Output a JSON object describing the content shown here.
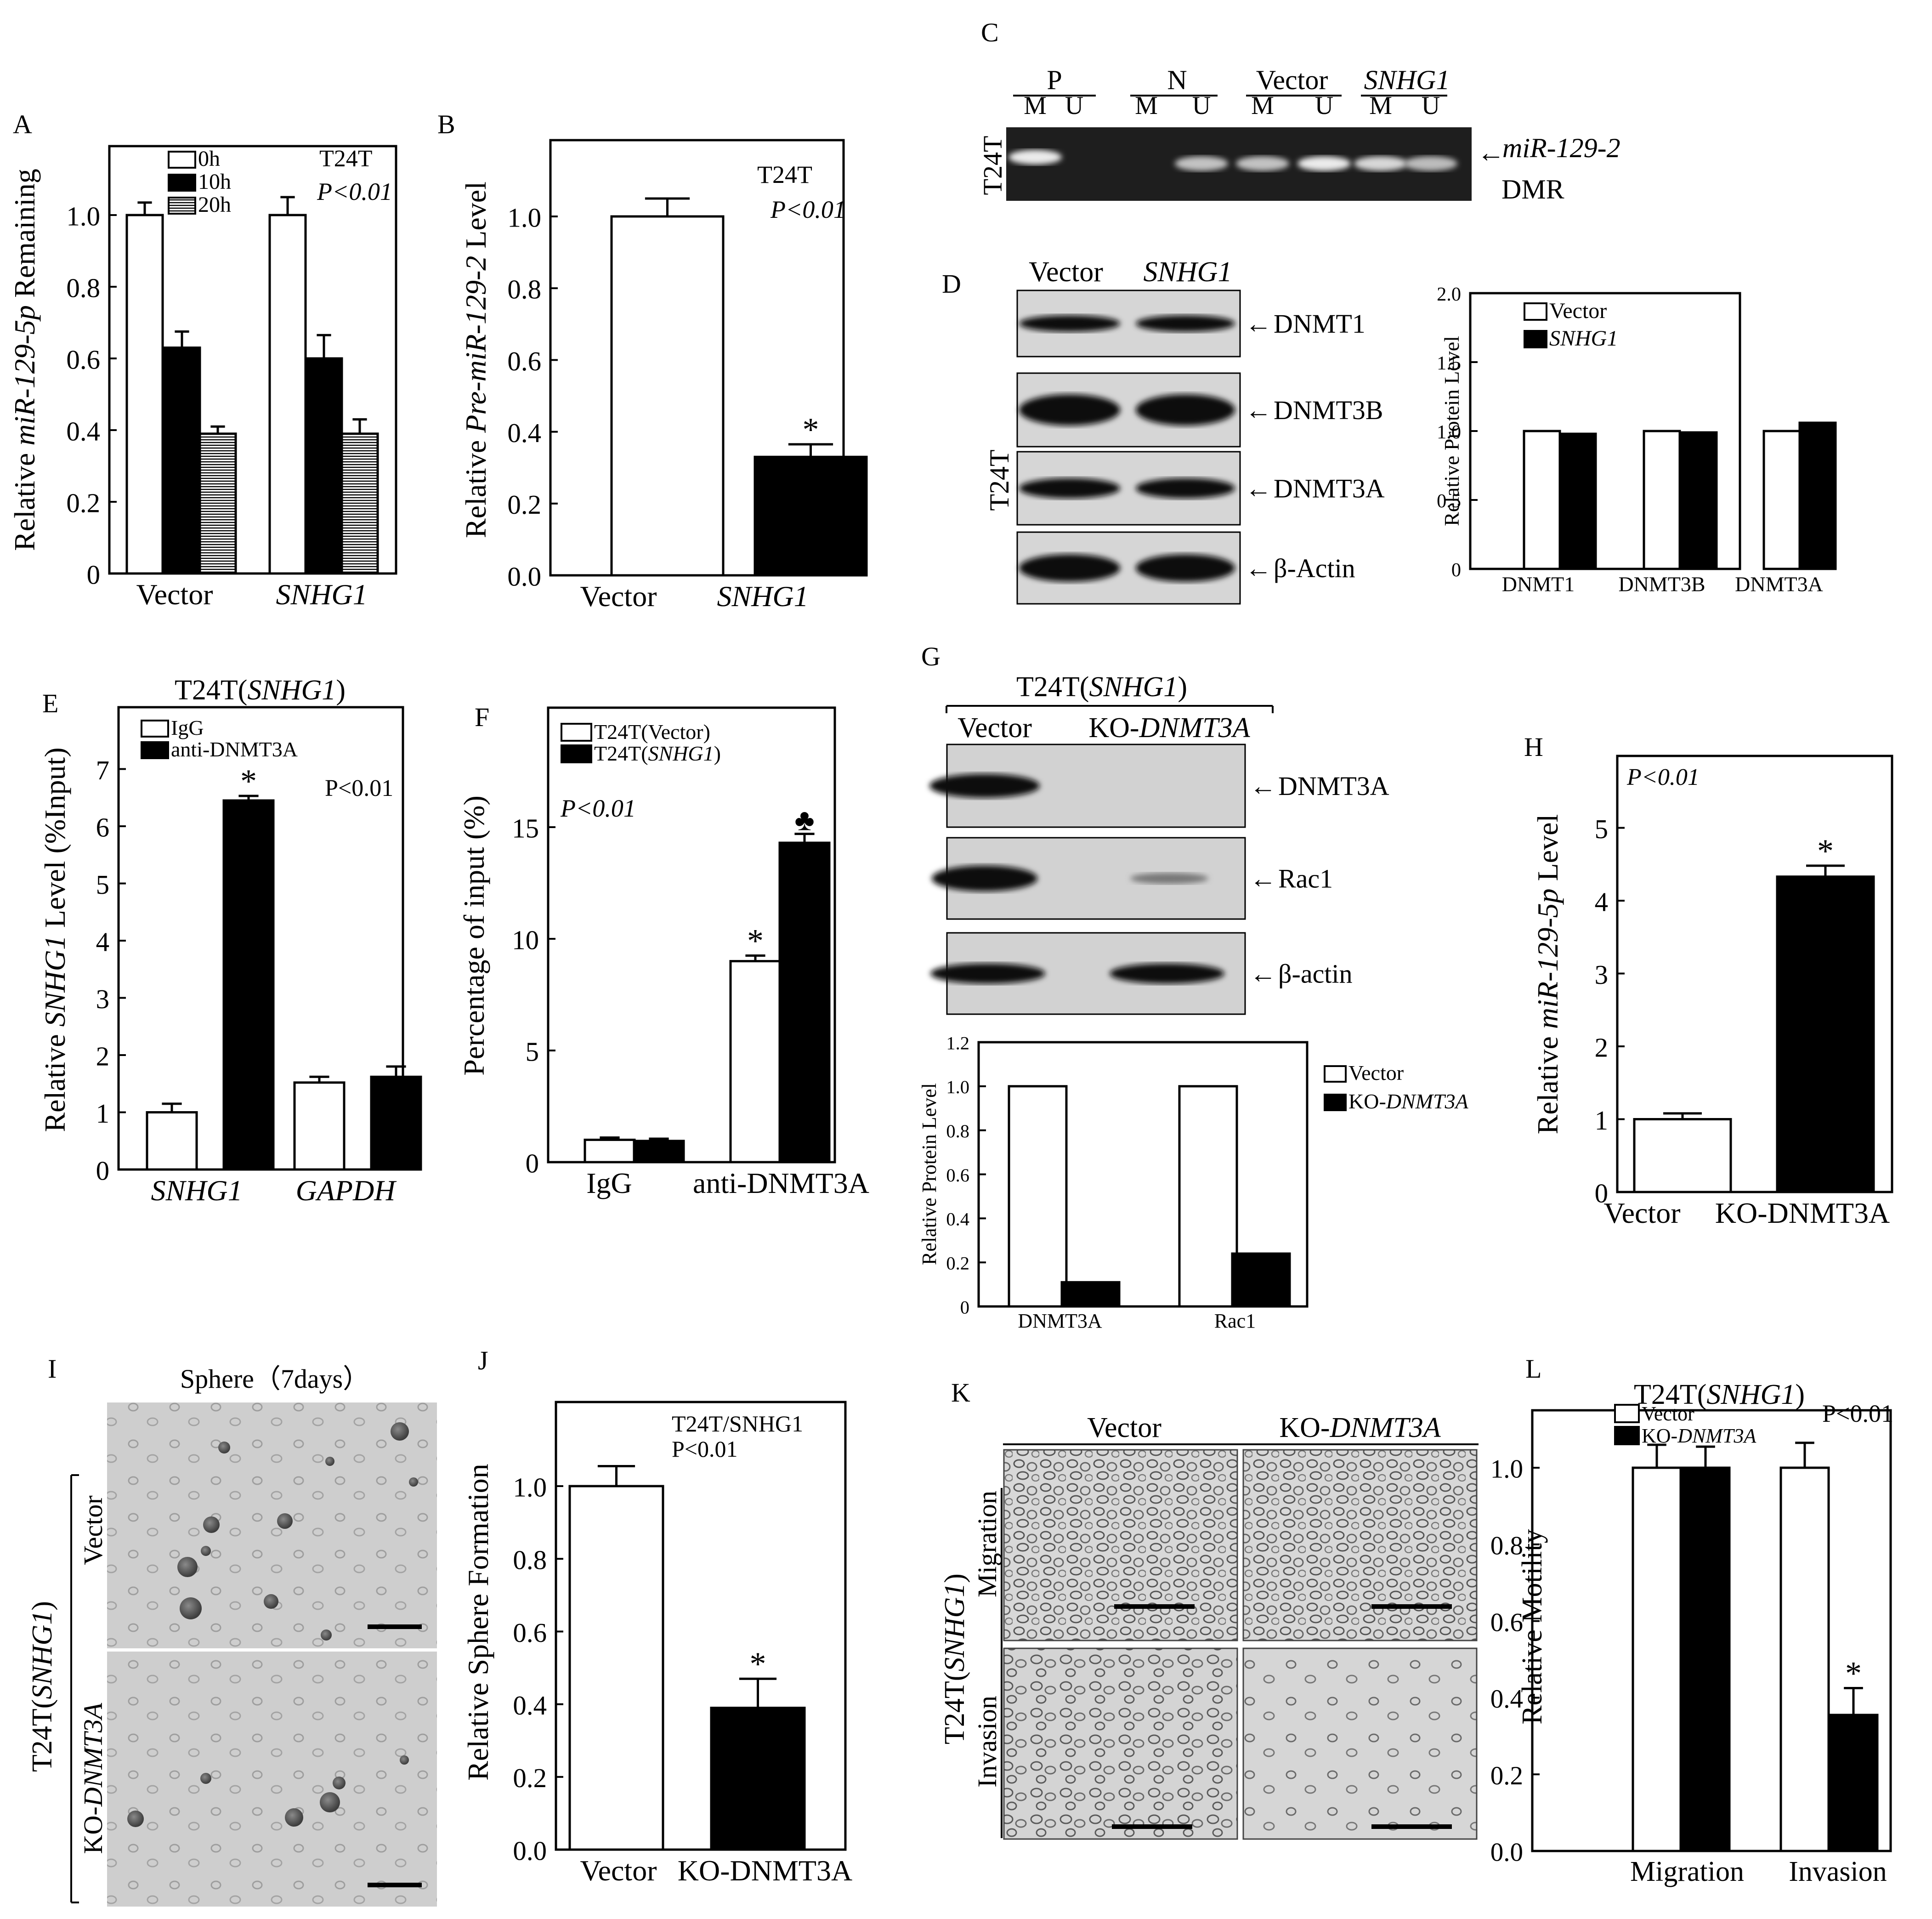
{
  "chart_data": [
    {
      "panel": "A",
      "type": "bar",
      "categories": [
        "Vector",
        "SNHG1"
      ],
      "italic_categories": [
        false,
        true
      ],
      "series": [
        {
          "name": "0h",
          "values": [
            1.0,
            1.0
          ],
          "errors": [
            0.035,
            0.05
          ],
          "fill": "white"
        },
        {
          "name": "10h",
          "values": [
            0.63,
            0.6
          ],
          "errors": [
            0.045,
            0.065
          ],
          "fill": "black"
        },
        {
          "name": "20h",
          "values": [
            0.39,
            0.39
          ],
          "errors": [
            0.02,
            0.04
          ],
          "fill": "hatch"
        }
      ],
      "ylim": [
        0,
        1.2
      ],
      "yticks": [
        "0",
        "0.2",
        "0.4",
        "0.6",
        "0.8",
        "1.0"
      ],
      "ylabel_parts": [
        {
          "t": "Relative ",
          "i": false
        },
        {
          "t": "miR-129-5p",
          "i": true
        },
        {
          "t": " Remaining",
          "i": false
        }
      ],
      "annotations": [
        {
          "text": "T24T",
          "italic": false
        },
        {
          "text": "P<0.01",
          "italic": true
        }
      ]
    },
    {
      "panel": "B",
      "type": "bar",
      "categories": [
        "Vector",
        "SNHG1"
      ],
      "italic_categories": [
        false,
        true
      ],
      "series": [
        {
          "name": "",
          "values": [
            1.0,
            0.33
          ],
          "errors": [
            0.05,
            0.035
          ],
          "fills": [
            "white",
            "black"
          ],
          "stars": [
            "",
            "*"
          ]
        }
      ],
      "ylim": [
        0,
        1.2
      ],
      "yticks": [
        "0.0",
        "0.2",
        "0.4",
        "0.6",
        "0.8",
        "1.0"
      ],
      "ylabel_parts": [
        {
          "t": "Relative ",
          "i": false
        },
        {
          "t": "Pre-miR-129-2",
          "i": true
        },
        {
          "t": " Level",
          "i": false
        }
      ],
      "annotations": [
        {
          "text": "T24T",
          "italic": false
        },
        {
          "text": "P<0.01",
          "italic": true
        }
      ]
    },
    {
      "panel": "D",
      "type": "bar",
      "categories": [
        "DNMT1",
        "DNMT3B",
        "DNMT3A"
      ],
      "series": [
        {
          "name": "Vector",
          "values": [
            1.0,
            1.0,
            1.0
          ],
          "fill": "white"
        },
        {
          "name": "SNHG1",
          "values": [
            0.98,
            0.99,
            1.06
          ],
          "fill": "black",
          "italic": true
        }
      ],
      "ylim": [
        0,
        2.0
      ],
      "yticks": [
        "0",
        "0.5",
        "1.0",
        "1.5",
        "2.0"
      ],
      "ylabel": "Relative Protein Level"
    },
    {
      "panel": "E",
      "type": "bar",
      "title_parts": [
        {
          "t": "T24T(",
          "i": false
        },
        {
          "t": "SNHG1",
          "i": true
        },
        {
          "t": ")",
          "i": false
        }
      ],
      "categories": [
        "SNHG1",
        "GAPDH"
      ],
      "italic_categories": [
        true,
        true
      ],
      "series": [
        {
          "name": "IgG",
          "values": [
            1.0,
            1.52
          ],
          "errors": [
            0.15,
            0.1
          ],
          "fill": "white"
        },
        {
          "name": "anti-DNMT3A",
          "values": [
            6.45,
            1.62
          ],
          "errors": [
            0.08,
            0.18
          ],
          "fill": "black",
          "stars": [
            "*",
            ""
          ]
        }
      ],
      "ylim": [
        0,
        7.4
      ],
      "yticks": [
        "0",
        "1",
        "2",
        "3",
        "4",
        "5",
        "6",
        "7"
      ],
      "ylabel_parts": [
        {
          "t": "Relative  ",
          "i": false
        },
        {
          "t": "SNHG1",
          "i": true
        },
        {
          "t": " Level (%Input)",
          "i": false
        }
      ],
      "annotations": [
        {
          "text": "P<0.01",
          "italic": false
        }
      ]
    },
    {
      "panel": "F",
      "type": "bar",
      "categories": [
        "IgG",
        "anti-DNMT3A"
      ],
      "series": [
        {
          "name": "T24T(Vector)",
          "values": [
            1.0,
            9.0
          ],
          "errors": [
            0.1,
            0.25
          ],
          "fill": "white",
          "stars": [
            "",
            "*"
          ]
        },
        {
          "name": "T24T(SNHG1)",
          "values": [
            0.95,
            14.3
          ],
          "errors": [
            0.1,
            0.4
          ],
          "fill": "black",
          "stars": [
            "",
            "♣"
          ]
        }
      ],
      "ylim": [
        0,
        18.5
      ],
      "yticks": [
        "0",
        "5",
        "10",
        "15"
      ],
      "ylabel": "Percentage of input (%)",
      "annotations": [
        {
          "text": "P<0.01",
          "italic": true
        }
      ]
    },
    {
      "panel": "G",
      "type": "bar",
      "categories": [
        "DNMT3A",
        "Rac1"
      ],
      "series": [
        {
          "name": "Vector",
          "values": [
            1.0,
            1.0
          ],
          "fill": "white"
        },
        {
          "name": "KO-DNMT3A",
          "values": [
            0.11,
            0.24
          ],
          "fill": "black"
        }
      ],
      "ylim": [
        0,
        1.2
      ],
      "yticks": [
        "0",
        "0.2",
        "0.4",
        "0.6",
        "0.8",
        "1.0",
        "1.2"
      ],
      "ylabel": "Relative Protein Level"
    },
    {
      "panel": "H",
      "type": "bar",
      "categories": [
        "Vector",
        "KO-DNMT3A"
      ],
      "series": [
        {
          "name": "",
          "values": [
            1.0,
            4.33
          ],
          "errors": [
            0.08,
            0.15
          ],
          "fills": [
            "white",
            "black"
          ],
          "stars": [
            "",
            "*"
          ]
        }
      ],
      "ylim": [
        0,
        5.55
      ],
      "yticks": [
        "0",
        "1",
        "2",
        "3",
        "4",
        "5"
      ],
      "ylabel_parts": [
        {
          "t": "Relative ",
          "i": false
        },
        {
          "t": "miR-129-5p",
          "i": true
        },
        {
          "t": " Level",
          "i": false
        }
      ],
      "annotations": [
        {
          "text": "P<0.01",
          "italic": true
        }
      ]
    },
    {
      "panel": "J",
      "type": "bar",
      "categories": [
        "Vector",
        "KO-DNMT3A"
      ],
      "series": [
        {
          "name": "",
          "values": [
            1.0,
            0.39
          ],
          "errors": [
            0.055,
            0.08
          ],
          "fills": [
            "white",
            "black"
          ],
          "stars": [
            "",
            "*"
          ]
        }
      ],
      "ylim": [
        0,
        1.2
      ],
      "yticks": [
        "0.0",
        "0.2",
        "0.4",
        "0.6",
        "0.8",
        "1.0"
      ],
      "ylabel": "Relative Sphere Formation",
      "annotations": [
        {
          "text": "T24T/SNHG1",
          "italic": false
        },
        {
          "text": "P<0.01",
          "italic": false
        }
      ]
    },
    {
      "panel": "L",
      "type": "bar",
      "title_parts": [
        {
          "t": "T24T(",
          "i": false
        },
        {
          "t": "SNHG1",
          "i": true
        },
        {
          "t": ")",
          "i": false
        }
      ],
      "categories": [
        "Migration",
        "Invasion"
      ],
      "series": [
        {
          "name": "Vector",
          "values": [
            1.0,
            1.0
          ],
          "errors": [
            0.06,
            0.065
          ],
          "fill": "white"
        },
        {
          "name": "KO-DNMT3A",
          "values": [
            1.0,
            0.355
          ],
          "errors": [
            0.055,
            0.07
          ],
          "fill": "black",
          "stars": [
            "",
            "*"
          ]
        }
      ],
      "ylim": [
        0,
        1.15
      ],
      "yticks": [
        "0.0",
        "0.2",
        "0.4",
        "0.6",
        "0.8",
        "1.0"
      ],
      "ylabel": "Relative Motility",
      "annotations": [
        {
          "text": "P<0.01",
          "italic": false
        }
      ]
    }
  ],
  "panel_labels": [
    "A",
    "B",
    "C",
    "D",
    "E",
    "F",
    "G",
    "H",
    "I",
    "J",
    "K",
    "L"
  ],
  "gel_c": {
    "groups": [
      "P",
      "N",
      "Vector",
      "SNHG1"
    ],
    "lane_labels": [
      "M",
      "U",
      "M",
      "U",
      "M",
      "U",
      "M",
      "U"
    ],
    "side_label": "T24T",
    "band_label": "miR-129-2",
    "band_label2": "DMR"
  },
  "blot_d": {
    "columns": [
      "Vector",
      "SNHG1"
    ],
    "rows": [
      "DNMT1",
      "DNMT3B",
      "DNMT3A",
      "β-Actin"
    ],
    "side_label": "T24T"
  },
  "blot_g": {
    "header": "T24T(SNHG1)",
    "columns": [
      "Vector",
      "KO-DNMT3A"
    ],
    "rows": [
      "DNMT3A",
      "Rac1",
      "β-actin"
    ]
  },
  "image_i": {
    "title": "Sphere（7days）",
    "group_label": "T24T(SNHG1)",
    "rows": [
      "Vector",
      "KO-DNMT3A"
    ]
  },
  "image_k": {
    "columns": [
      "Vector",
      "KO-DNMT3A"
    ],
    "rows": [
      "Migration",
      "Invasion"
    ],
    "group_label": "T24T(SNHG1)"
  }
}
